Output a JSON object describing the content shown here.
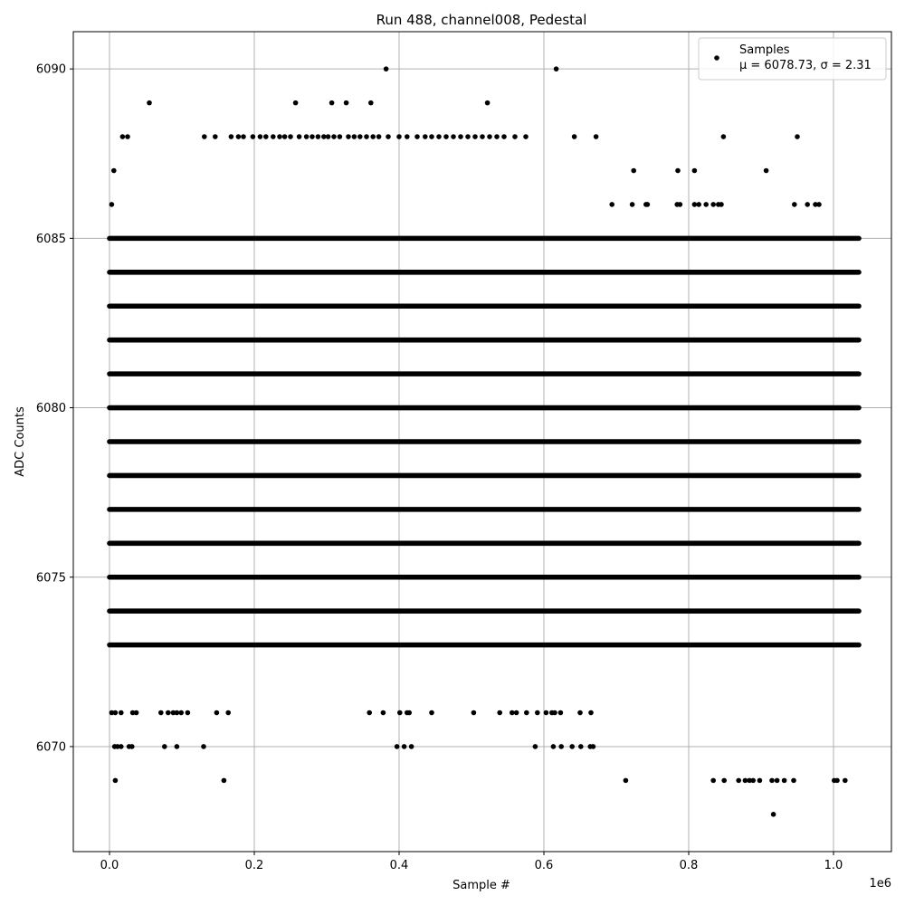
{
  "chart_data": {
    "type": "scatter",
    "title": "Run 488, channel008, Pedestal",
    "xlabel": "Sample #",
    "ylabel": "ADC Counts",
    "x_offset_label": "1e6",
    "x_scale": 1000000,
    "xlim": [
      -0.05,
      1.08
    ],
    "ylim": [
      6066.9,
      6091.1
    ],
    "xticks": [
      0.0,
      0.2,
      0.4,
      0.6,
      0.8,
      1.0
    ],
    "xtick_labels": [
      "0.0",
      "0.2",
      "0.4",
      "0.6",
      "0.8",
      "1.0"
    ],
    "yticks": [
      6070,
      6075,
      6080,
      6085,
      6090
    ],
    "ytick_labels": [
      "6070",
      "6075",
      "6080",
      "6085",
      "6090"
    ],
    "grid": true,
    "legend_position": "top-right",
    "marker_color": "#000000",
    "series": [
      {
        "name": "Samples",
        "stats_label": "μ = 6078.73, σ = 2.31",
        "continuous_bands": [
          {
            "y": 6085,
            "x_range": [
              0.0,
              1.035
            ]
          },
          {
            "y": 6084,
            "x_range": [
              0.0,
              1.035
            ]
          },
          {
            "y": 6083,
            "x_range": [
              0.0,
              1.035
            ]
          },
          {
            "y": 6082,
            "x_range": [
              0.0,
              1.035
            ]
          },
          {
            "y": 6081,
            "x_range": [
              0.0,
              1.035
            ]
          },
          {
            "y": 6080,
            "x_range": [
              0.0,
              1.035
            ]
          },
          {
            "y": 6079,
            "x_range": [
              0.0,
              1.035
            ]
          },
          {
            "y": 6078,
            "x_range": [
              0.0,
              1.035
            ]
          },
          {
            "y": 6077,
            "x_range": [
              0.0,
              1.035
            ]
          },
          {
            "y": 6076,
            "x_range": [
              0.0,
              1.035
            ]
          },
          {
            "y": 6075,
            "x_range": [
              0.0,
              1.035
            ]
          },
          {
            "y": 6074,
            "x_range": [
              0.0,
              1.035
            ]
          },
          {
            "y": 6073,
            "x_range": [
              0.0,
              1.035
            ]
          }
        ],
        "points": [
          [
            0.055,
            6089
          ],
          [
            0.257,
            6089
          ],
          [
            0.307,
            6089
          ],
          [
            0.327,
            6089
          ],
          [
            0.361,
            6089
          ],
          [
            0.522,
            6089
          ],
          [
            0.382,
            6090
          ],
          [
            0.617,
            6090
          ],
          [
            0.018,
            6088
          ],
          [
            0.025,
            6088
          ],
          [
            0.131,
            6088
          ],
          [
            0.146,
            6088
          ],
          [
            0.168,
            6088
          ],
          [
            0.178,
            6088
          ],
          [
            0.185,
            6088
          ],
          [
            0.198,
            6088
          ],
          [
            0.208,
            6088
          ],
          [
            0.216,
            6088
          ],
          [
            0.226,
            6088
          ],
          [
            0.235,
            6088
          ],
          [
            0.242,
            6088
          ],
          [
            0.25,
            6088
          ],
          [
            0.262,
            6088
          ],
          [
            0.272,
            6088
          ],
          [
            0.28,
            6088
          ],
          [
            0.288,
            6088
          ],
          [
            0.296,
            6088
          ],
          [
            0.302,
            6088
          ],
          [
            0.31,
            6088
          ],
          [
            0.318,
            6088
          ],
          [
            0.33,
            6088
          ],
          [
            0.338,
            6088
          ],
          [
            0.346,
            6088
          ],
          [
            0.355,
            6088
          ],
          [
            0.364,
            6088
          ],
          [
            0.372,
            6088
          ],
          [
            0.385,
            6088
          ],
          [
            0.4,
            6088
          ],
          [
            0.411,
            6088
          ],
          [
            0.425,
            6088
          ],
          [
            0.436,
            6088
          ],
          [
            0.445,
            6088
          ],
          [
            0.455,
            6088
          ],
          [
            0.465,
            6088
          ],
          [
            0.475,
            6088
          ],
          [
            0.485,
            6088
          ],
          [
            0.495,
            6088
          ],
          [
            0.505,
            6088
          ],
          [
            0.515,
            6088
          ],
          [
            0.525,
            6088
          ],
          [
            0.535,
            6088
          ],
          [
            0.545,
            6088
          ],
          [
            0.56,
            6088
          ],
          [
            0.575,
            6088
          ],
          [
            0.642,
            6088
          ],
          [
            0.672,
            6088
          ],
          [
            0.848,
            6088
          ],
          [
            0.95,
            6088
          ],
          [
            0.006,
            6087
          ],
          [
            0.724,
            6087
          ],
          [
            0.785,
            6087
          ],
          [
            0.808,
            6087
          ],
          [
            0.907,
            6087
          ],
          [
            0.003,
            6086
          ],
          [
            0.694,
            6086
          ],
          [
            0.722,
            6086
          ],
          [
            0.741,
            6086
          ],
          [
            0.743,
            6086
          ],
          [
            0.784,
            6086
          ],
          [
            0.788,
            6086
          ],
          [
            0.808,
            6086
          ],
          [
            0.814,
            6086
          ],
          [
            0.824,
            6086
          ],
          [
            0.834,
            6086
          ],
          [
            0.841,
            6086
          ],
          [
            0.845,
            6086
          ],
          [
            0.946,
            6086
          ],
          [
            0.964,
            6086
          ],
          [
            0.975,
            6086
          ],
          [
            0.98,
            6086
          ],
          [
            0.003,
            6071
          ],
          [
            0.008,
            6071
          ],
          [
            0.016,
            6071
          ],
          [
            0.032,
            6071
          ],
          [
            0.037,
            6071
          ],
          [
            0.071,
            6071
          ],
          [
            0.081,
            6071
          ],
          [
            0.088,
            6071
          ],
          [
            0.093,
            6071
          ],
          [
            0.099,
            6071
          ],
          [
            0.108,
            6071
          ],
          [
            0.148,
            6071
          ],
          [
            0.164,
            6071
          ],
          [
            0.359,
            6071
          ],
          [
            0.378,
            6071
          ],
          [
            0.401,
            6071
          ],
          [
            0.411,
            6071
          ],
          [
            0.414,
            6071
          ],
          [
            0.445,
            6071
          ],
          [
            0.503,
            6071
          ],
          [
            0.539,
            6071
          ],
          [
            0.556,
            6071
          ],
          [
            0.562,
            6071
          ],
          [
            0.576,
            6071
          ],
          [
            0.591,
            6071
          ],
          [
            0.603,
            6071
          ],
          [
            0.611,
            6071
          ],
          [
            0.615,
            6071
          ],
          [
            0.623,
            6071
          ],
          [
            0.65,
            6071
          ],
          [
            0.665,
            6071
          ],
          [
            0.007,
            6070
          ],
          [
            0.011,
            6070
          ],
          [
            0.016,
            6070
          ],
          [
            0.027,
            6070
          ],
          [
            0.031,
            6070
          ],
          [
            0.076,
            6070
          ],
          [
            0.093,
            6070
          ],
          [
            0.13,
            6070
          ],
          [
            0.397,
            6070
          ],
          [
            0.407,
            6070
          ],
          [
            0.417,
            6070
          ],
          [
            0.588,
            6070
          ],
          [
            0.613,
            6070
          ],
          [
            0.624,
            6070
          ],
          [
            0.639,
            6070
          ],
          [
            0.651,
            6070
          ],
          [
            0.664,
            6070
          ],
          [
            0.668,
            6070
          ],
          [
            0.008,
            6069
          ],
          [
            0.158,
            6069
          ],
          [
            0.713,
            6069
          ],
          [
            0.834,
            6069
          ],
          [
            0.849,
            6069
          ],
          [
            0.869,
            6069
          ],
          [
            0.878,
            6069
          ],
          [
            0.884,
            6069
          ],
          [
            0.889,
            6069
          ],
          [
            0.898,
            6069
          ],
          [
            0.915,
            6069
          ],
          [
            0.922,
            6069
          ],
          [
            0.932,
            6069
          ],
          [
            0.945,
            6069
          ],
          [
            1.001,
            6069
          ],
          [
            1.005,
            6069
          ],
          [
            1.016,
            6069
          ],
          [
            0.917,
            6068
          ]
        ]
      }
    ]
  }
}
